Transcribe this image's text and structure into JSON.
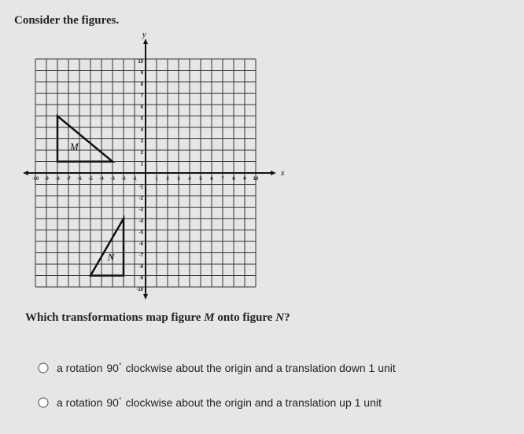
{
  "title": "Consider the figures.",
  "graph": {
    "xlim": [
      -10,
      10
    ],
    "ylim": [
      -10,
      10
    ],
    "xticks": [
      -10,
      -9,
      -8,
      -7,
      -6,
      -5,
      -4,
      -3,
      -2,
      -1,
      1,
      2,
      3,
      4,
      5,
      6,
      7,
      8,
      9,
      10
    ],
    "yticks": [
      -10,
      -9,
      -8,
      -7,
      -6,
      -5,
      -4,
      -3,
      -2,
      -1,
      1,
      2,
      3,
      4,
      5,
      6,
      7,
      8,
      9,
      10
    ],
    "x_label": "x",
    "y_label": "y",
    "figures": [
      {
        "name": "M",
        "x": [
          -8,
          -8,
          -3
        ],
        "y": [
          5,
          1,
          1
        ]
      },
      {
        "name": "N",
        "x": [
          -2,
          -2,
          -5
        ],
        "y": [
          -4,
          -9,
          -9
        ]
      }
    ]
  },
  "question": {
    "before": "Which transformations map figure",
    "from": "M",
    "middle": "onto figure",
    "to": "N",
    "end": "?"
  },
  "options": [
    {
      "prefix": "a rotation",
      "angle": "90",
      "degree": "°",
      "suffix": "clockwise about the origin and a translation down 1 unit"
    },
    {
      "prefix": "a rotation",
      "angle": "90",
      "degree": "°",
      "suffix": "clockwise about the origin and a translation up 1 unit"
    }
  ]
}
